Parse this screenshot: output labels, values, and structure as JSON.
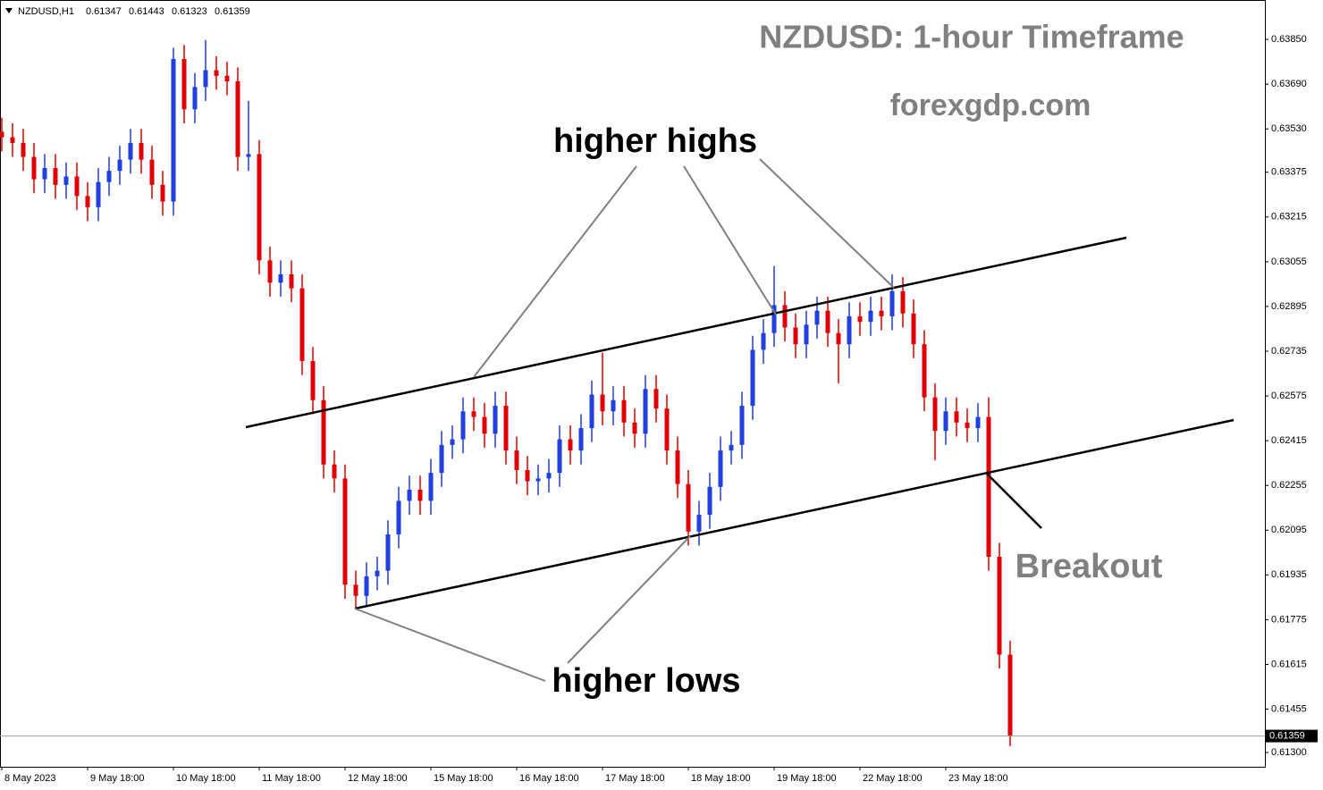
{
  "chart_data": {
    "type": "candlestick",
    "header": {
      "symbol": "NZDUSD,H1",
      "ohlc": [
        0.61347,
        0.61443,
        0.61323,
        0.61359
      ]
    },
    "title": "NZDUSD: 1-hour Timeframe",
    "subtitle": "forexgdp.com",
    "annotations": {
      "highs": "higher highs",
      "lows": "higher lows",
      "breakout": "Breakout"
    },
    "up_color": "#1f3fe0",
    "down_color": "#e00000",
    "ylim": [
      0.61249,
      0.63991
    ],
    "yticks": [
      {
        "value": 0.6385,
        "label": "0.63850"
      },
      {
        "value": 0.6369,
        "label": "0.63690"
      },
      {
        "value": 0.6353,
        "label": "0.63530"
      },
      0.63375,
      0.63215,
      0.63055,
      0.62895,
      0.62735,
      0.62575,
      0.62415,
      0.62255,
      0.62095,
      0.61935,
      0.61775,
      0.61615,
      0.61455,
      {
        "value": 0.613,
        "label": "0.61300"
      }
    ],
    "last_price": 0.61359,
    "xticks": [
      {
        "value": 0,
        "label": "8 May 2023"
      },
      {
        "value": 8,
        "label": "9 May 18:00"
      },
      {
        "value": 16,
        "label": "10 May 18:00"
      },
      {
        "value": 24,
        "label": "11 May 18:00"
      },
      {
        "value": 32,
        "label": "12 May 18:00"
      },
      {
        "value": 40,
        "label": "15 May 18:00"
      },
      {
        "value": 48,
        "label": "16 May 18:00"
      },
      {
        "value": 56,
        "label": "17 May 18:00"
      },
      {
        "value": 64,
        "label": "18 May 18:00"
      },
      {
        "value": 72,
        "label": "19 May 18:00"
      },
      {
        "value": 80,
        "label": "22 May 18:00"
      },
      {
        "value": 88,
        "label": "23 May 18:00"
      }
    ],
    "open": [
      0.6352,
      0.635,
      0.6348,
      0.6343,
      0.6335,
      0.6339,
      0.6333,
      0.6336,
      0.6329,
      0.6325,
      0.6334,
      0.6338,
      0.6342,
      0.6348,
      0.6342,
      0.6333,
      0.6327,
      0.6378,
      0.636,
      0.6368,
      0.6374,
      0.6372,
      0.637,
      0.6343,
      0.6344,
      0.6306,
      0.6298,
      0.6301,
      0.6296,
      0.627,
      0.6256,
      0.6233,
      0.6228,
      0.619,
      0.6186,
      0.6193,
      0.6195,
      0.6208,
      0.622,
      0.6224,
      0.622,
      0.623,
      0.624,
      0.6242,
      0.6252,
      0.625,
      0.6244,
      0.6254,
      0.6238,
      0.6231,
      0.6227,
      0.6228,
      0.623,
      0.6242,
      0.6238,
      0.6246,
      0.6258,
      0.6252,
      0.6256,
      0.6248,
      0.6244,
      0.626,
      0.6253,
      0.6238,
      0.6226,
      0.6209,
      0.6215,
      0.6225,
      0.6238,
      0.624,
      0.6254,
      0.6274,
      0.628,
      0.629,
      0.6282,
      0.6276,
      0.6283,
      0.6288,
      0.628,
      0.6276,
      0.6286,
      0.6284,
      0.6288,
      0.6286,
      0.6295,
      0.6287,
      0.6276,
      0.6257,
      0.6245,
      0.6252,
      0.6248,
      0.6246,
      0.625,
      0.62,
      0.6165
    ],
    "high": [
      0.6357,
      0.6355,
      0.6353,
      0.6348,
      0.6344,
      0.6344,
      0.6341,
      0.6341,
      0.6334,
      0.6339,
      0.6343,
      0.6347,
      0.6353,
      0.6353,
      0.6347,
      0.6338,
      0.6382,
      0.6383,
      0.6373,
      0.63848,
      0.6379,
      0.6377,
      0.6375,
      0.6363,
      0.6349,
      0.6311,
      0.6306,
      0.6306,
      0.6301,
      0.6275,
      0.6261,
      0.6238,
      0.6233,
      0.6195,
      0.6198,
      0.62,
      0.6213,
      0.6225,
      0.6229,
      0.6229,
      0.6235,
      0.6245,
      0.6247,
      0.6257,
      0.6257,
      0.6255,
      0.6259,
      0.6259,
      0.6243,
      0.6236,
      0.6233,
      0.6235,
      0.6247,
      0.6247,
      0.6251,
      0.6263,
      0.6273,
      0.6261,
      0.6261,
      0.6253,
      0.6265,
      0.6265,
      0.6258,
      0.6243,
      0.6231,
      0.622,
      0.623,
      0.6243,
      0.6245,
      0.6259,
      0.6279,
      0.6285,
      0.6304,
      0.6295,
      0.6287,
      0.6288,
      0.6293,
      0.6293,
      0.6285,
      0.6291,
      0.6291,
      0.6293,
      0.6293,
      0.6301,
      0.63,
      0.6292,
      0.6281,
      0.6262,
      0.6257,
      0.6257,
      0.6253,
      0.6255,
      0.6257,
      0.6205,
      0.617
    ],
    "low": [
      0.6345,
      0.6343,
      0.6338,
      0.633,
      0.633,
      0.6328,
      0.6328,
      0.6324,
      0.632,
      0.632,
      0.6329,
      0.6333,
      0.6337,
      0.6337,
      0.6328,
      0.6322,
      0.6322,
      0.6355,
      0.6355,
      0.6363,
      0.6367,
      0.6365,
      0.6338,
      0.6338,
      0.6301,
      0.6293,
      0.6293,
      0.6291,
      0.6265,
      0.6251,
      0.6228,
      0.6223,
      0.6185,
      0.61818,
      0.6182,
      0.6188,
      0.619,
      0.6203,
      0.6215,
      0.6215,
      0.6215,
      0.6225,
      0.6235,
      0.6237,
      0.6245,
      0.6239,
      0.6239,
      0.6233,
      0.6226,
      0.6222,
      0.6222,
      0.6223,
      0.6225,
      0.6233,
      0.6233,
      0.6241,
      0.6247,
      0.6247,
      0.6243,
      0.6239,
      0.6239,
      0.6248,
      0.6233,
      0.6221,
      0.6204,
      0.6204,
      0.621,
      0.622,
      0.6233,
      0.6235,
      0.6249,
      0.6269,
      0.6275,
      0.6277,
      0.6271,
      0.6271,
      0.6278,
      0.6275,
      0.6262,
      0.6271,
      0.6279,
      0.6279,
      0.6281,
      0.6281,
      0.6282,
      0.6271,
      0.6252,
      0.62345,
      0.624,
      0.6243,
      0.6241,
      0.6241,
      0.6195,
      0.616,
      0.61323
    ],
    "close": [
      0.635,
      0.6348,
      0.6343,
      0.6335,
      0.6339,
      0.6333,
      0.6336,
      0.6329,
      0.6325,
      0.6334,
      0.6338,
      0.6342,
      0.6348,
      0.6342,
      0.6333,
      0.6327,
      0.6378,
      0.636,
      0.6368,
      0.6374,
      0.6372,
      0.637,
      0.6343,
      0.6344,
      0.6306,
      0.6298,
      0.6301,
      0.6296,
      0.627,
      0.6256,
      0.6233,
      0.6228,
      0.619,
      0.6186,
      0.6193,
      0.6195,
      0.6208,
      0.622,
      0.6224,
      0.622,
      0.623,
      0.624,
      0.6242,
      0.6252,
      0.625,
      0.6244,
      0.6254,
      0.6238,
      0.6231,
      0.6227,
      0.6228,
      0.623,
      0.6242,
      0.6238,
      0.6246,
      0.6258,
      0.6252,
      0.6256,
      0.6248,
      0.6244,
      0.626,
      0.6253,
      0.6238,
      0.6226,
      0.6209,
      0.6215,
      0.6225,
      0.6238,
      0.624,
      0.6254,
      0.6274,
      0.628,
      0.629,
      0.6282,
      0.6276,
      0.6283,
      0.6288,
      0.628,
      0.6276,
      0.6286,
      0.6284,
      0.6288,
      0.6286,
      0.6295,
      0.6287,
      0.6276,
      0.6257,
      0.6245,
      0.6252,
      0.6248,
      0.6246,
      0.625,
      0.62,
      0.6165,
      0.61359
    ]
  }
}
